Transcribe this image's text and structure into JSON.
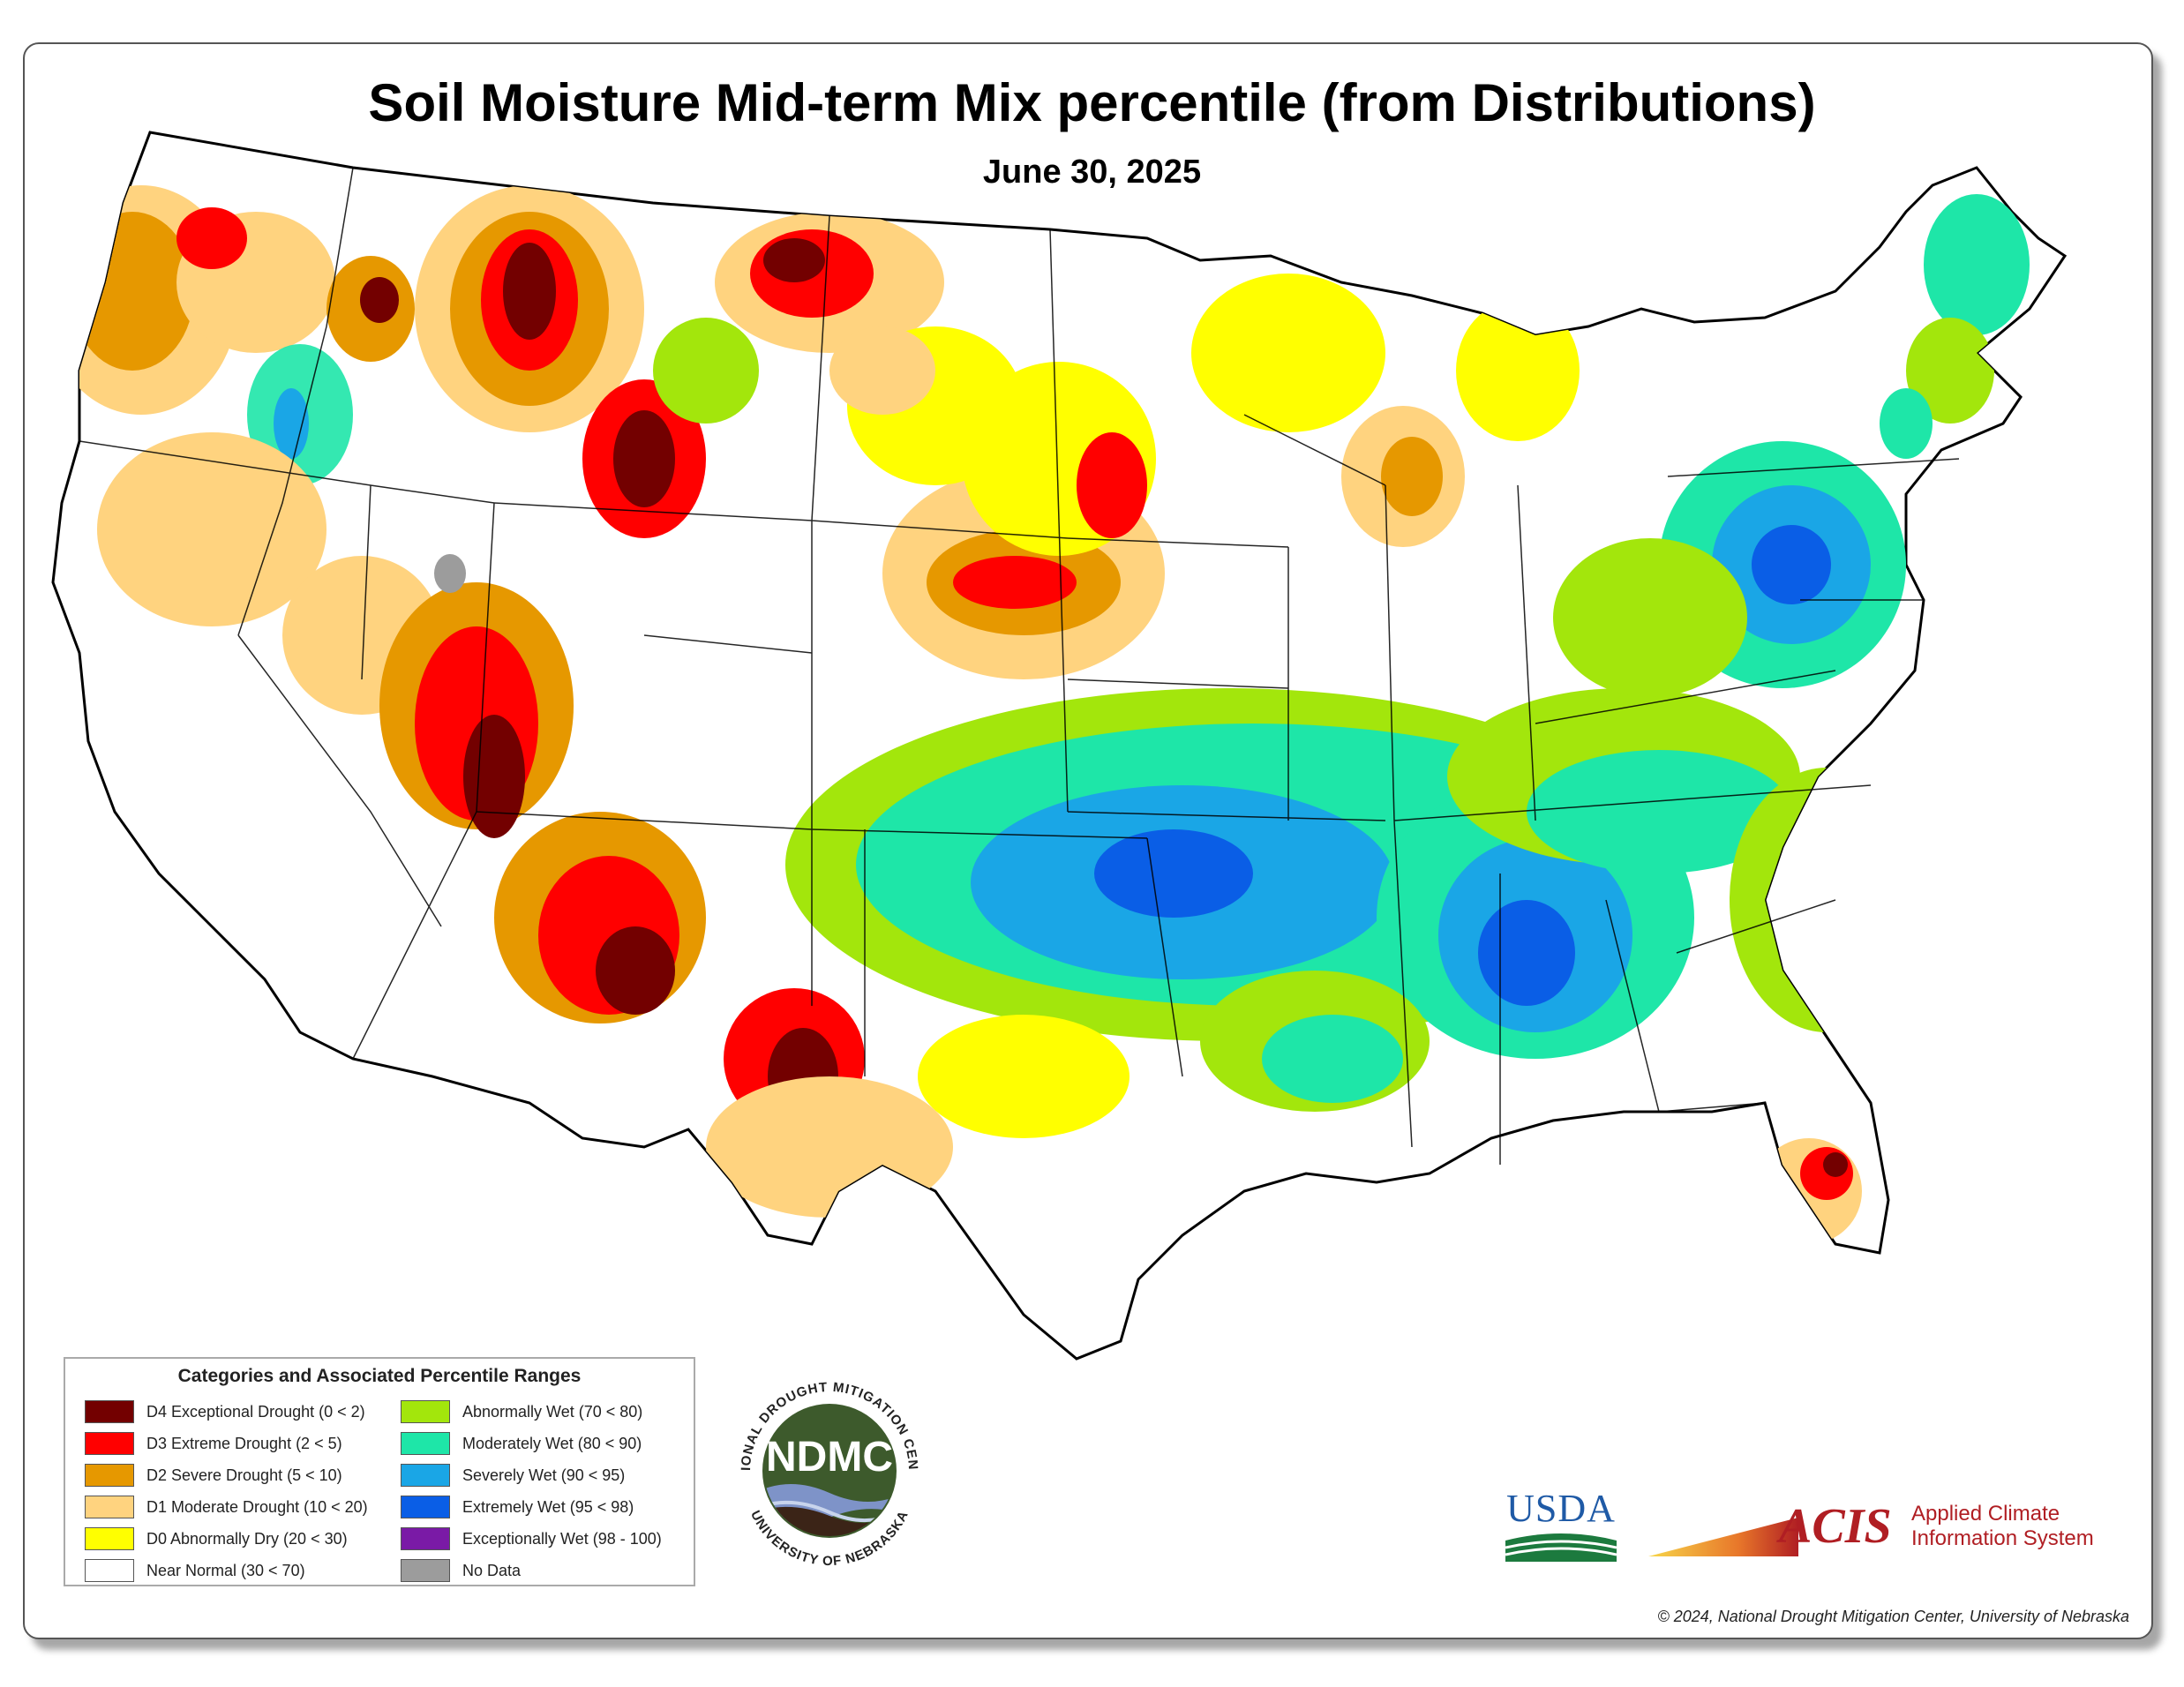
{
  "title": "Soil Moisture Mid-term Mix percentile (from Distributions)",
  "date": "June 30, 2025",
  "legend": {
    "title": "Categories and Associated Percentile Ranges",
    "left": [
      {
        "label": "D4 Exceptional Drought (0 < 2)",
        "color": "#730000"
      },
      {
        "label": "D3 Extreme Drought (2 < 5)",
        "color": "#ff0000"
      },
      {
        "label": "D2 Severe Drought (5 < 10)",
        "color": "#e69800"
      },
      {
        "label": "D1 Moderate Drought (10 < 20)",
        "color": "#ffd37f"
      },
      {
        "label": "D0 Abnormally Dry (20 < 30)",
        "color": "#ffff00"
      },
      {
        "label": "Near Normal (30 < 70)",
        "color": "#ffffff"
      }
    ],
    "right": [
      {
        "label": "Abnormally Wet (70 < 80)",
        "color": "#a3e60c"
      },
      {
        "label": "Moderately Wet (80 < 90)",
        "color": "#1ee6a8"
      },
      {
        "label": "Severely Wet (90 < 95)",
        "color": "#1aa6e6"
      },
      {
        "label": "Extremely Wet (95 < 98)",
        "color": "#0a5ee6"
      },
      {
        "label": "Exceptionally Wet (98 - 100)",
        "color": "#7a1aa6"
      },
      {
        "label": "No Data",
        "color": "#9c9c9c"
      }
    ]
  },
  "logos": {
    "ndmc": {
      "abbr": "NDMC",
      "ring_top": "NATIONAL DROUGHT MITIGATION CENTER",
      "ring_bottom": "UNIVERSITY OF NEBRASKA"
    },
    "usda": "USDA",
    "acis": {
      "abbr": "ACIS",
      "line1": "Applied Climate",
      "line2": "Information System"
    }
  },
  "copyright": "© 2024, National Drought Mitigation Center, University of Nebraska",
  "colors": {
    "d4": "#730000",
    "d3": "#ff0000",
    "d2": "#e69800",
    "d1": "#ffd37f",
    "d0": "#ffff00",
    "normal": "#ffffff",
    "w1": "#a3e60c",
    "w2": "#1ee6a8",
    "w3": "#1aa6e6",
    "w4": "#0a5ee6",
    "w5": "#7a1aa6",
    "nodata": "#9c9c9c",
    "ndmc_green": "#3d5a2c",
    "usda_blue": "#1f5aa6",
    "usda_green": "#1c7a3e",
    "acis_red": "#b01e23"
  }
}
